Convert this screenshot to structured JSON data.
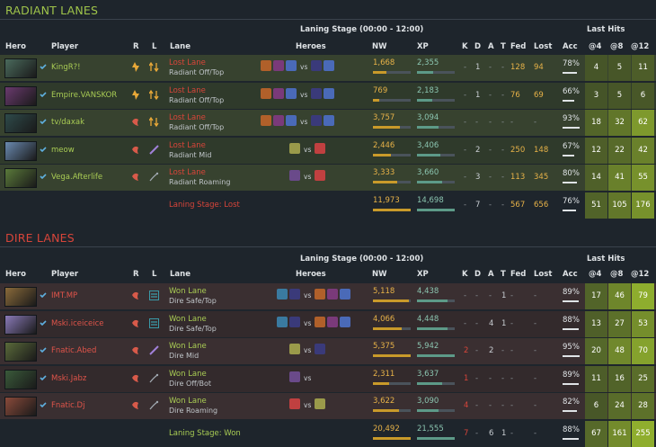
{
  "radiant": {
    "title": "RADIANT LANES",
    "stage_header": "Laning Stage (00:00 - 12:00)",
    "last_hits_header": "Last Hits",
    "columns": {
      "hero": "Hero",
      "player": "Player",
      "r": "R",
      "l": "L",
      "lane": "Lane",
      "heroes": "Heroes",
      "nw": "NW",
      "xp": "XP",
      "k": "K",
      "d": "D",
      "a": "A",
      "t": "T",
      "fed": "Fed",
      "lost": "Lost",
      "acc": "Acc",
      "lh4": "@4",
      "lh8": "@8",
      "lh12": "@12"
    },
    "rows": [
      {
        "player": "KingR?!",
        "lane_result": "Lost Lane",
        "lane_pos": "Radiant Off/Top",
        "nw": "1,668",
        "nw_frac": 0.35,
        "xp": "2,355",
        "xp_frac": 0.43,
        "k": "-",
        "d": "1",
        "a": "-",
        "t": "-",
        "fed": "128",
        "lost": "94",
        "acc": "78%",
        "acc_frac": 0.78,
        "lh4": "4",
        "lh8": "5",
        "lh12": "11",
        "vs": "vs"
      },
      {
        "player": "Empire.VANSKOR",
        "lane_result": "Lost Lane",
        "lane_pos": "Radiant Off/Top",
        "nw": "769",
        "nw_frac": 0.16,
        "xp": "2,183",
        "xp_frac": 0.4,
        "k": "-",
        "d": "1",
        "a": "-",
        "t": "-",
        "fed": "76",
        "lost": "69",
        "acc": "66%",
        "acc_frac": 0.66,
        "lh4": "3",
        "lh8": "5",
        "lh12": "6",
        "vs": "vs"
      },
      {
        "player": "tv/daxak",
        "lane_result": "Lost Lane",
        "lane_pos": "Radiant Off/Top",
        "nw": "3,757",
        "nw_frac": 0.72,
        "xp": "3,094",
        "xp_frac": 0.57,
        "k": "-",
        "d": "-",
        "a": "-",
        "t": "-",
        "fed": "-",
        "lost": "-",
        "acc": "93%",
        "acc_frac": 0.93,
        "lh4": "18",
        "lh8": "32",
        "lh12": "62",
        "vs": "vs"
      },
      {
        "player": "meow",
        "lane_result": "Lost Lane",
        "lane_pos": "Radiant Mid",
        "nw": "2,446",
        "nw_frac": 0.47,
        "xp": "3,406",
        "xp_frac": 0.62,
        "k": "-",
        "d": "2",
        "a": "-",
        "t": "-",
        "fed": "250",
        "lost": "148",
        "acc": "67%",
        "acc_frac": 0.67,
        "lh4": "12",
        "lh8": "22",
        "lh12": "42",
        "vs": "vs"
      },
      {
        "player": "Vega.Afterlife",
        "lane_result": "Lost Lane",
        "lane_pos": "Radiant Roaming",
        "nw": "3,333",
        "nw_frac": 0.64,
        "xp": "3,660",
        "xp_frac": 0.67,
        "k": "-",
        "d": "3",
        "a": "-",
        "t": "-",
        "fed": "113",
        "lost": "345",
        "acc": "80%",
        "acc_frac": 0.8,
        "lh4": "14",
        "lh8": "41",
        "lh12": "55",
        "vs": "vs"
      }
    ],
    "total": {
      "label": "Laning Stage: Lost",
      "nw": "11,973",
      "xp": "14,698",
      "k": "-",
      "d": "7",
      "a": "-",
      "t": "-",
      "fed": "567",
      "lost": "656",
      "acc": "76%",
      "acc_frac": 0.76,
      "lh4": "51",
      "lh8": "105",
      "lh12": "176"
    }
  },
  "dire": {
    "title": "DIRE LANES",
    "stage_header": "Laning Stage (00:00 - 12:00)",
    "last_hits_header": "Last Hits",
    "columns": {
      "hero": "Hero",
      "player": "Player",
      "r": "R",
      "l": "L",
      "lane": "Lane",
      "heroes": "Heroes",
      "nw": "NW",
      "xp": "XP",
      "k": "K",
      "d": "D",
      "a": "A",
      "t": "T",
      "fed": "Fed",
      "lost": "Lost",
      "acc": "Acc",
      "lh4": "@4",
      "lh8": "@8",
      "lh12": "@12"
    },
    "rows": [
      {
        "player": "IMT.MP",
        "lane_result": "Won Lane",
        "lane_pos": "Dire Safe/Top",
        "nw": "5,118",
        "nw_frac": 0.95,
        "xp": "4,438",
        "xp_frac": 0.8,
        "k": "-",
        "d": "-",
        "a": "-",
        "t": "1",
        "fed": "-",
        "lost": "-",
        "acc": "89%",
        "acc_frac": 0.89,
        "lh4": "17",
        "lh8": "46",
        "lh12": "79",
        "vs": "vs"
      },
      {
        "player": "Mski.iceiceice",
        "lane_result": "Won Lane",
        "lane_pos": "Dire Safe/Top",
        "nw": "4,066",
        "nw_frac": 0.76,
        "xp": "4,448",
        "xp_frac": 0.8,
        "k": "-",
        "d": "-",
        "a": "4",
        "t": "1",
        "fed": "-",
        "lost": "-",
        "acc": "88%",
        "acc_frac": 0.88,
        "lh4": "13",
        "lh8": "27",
        "lh12": "53",
        "vs": "vs"
      },
      {
        "player": "Fnatic.Abed",
        "lane_result": "Won Lane",
        "lane_pos": "Dire Mid",
        "nw": "5,375",
        "nw_frac": 1.0,
        "xp": "5,942",
        "xp_frac": 1.0,
        "k": "2",
        "d": "-",
        "a": "2",
        "t": "-",
        "fed": "-",
        "lost": "-",
        "acc": "95%",
        "acc_frac": 0.95,
        "lh4": "20",
        "lh8": "48",
        "lh12": "70",
        "vs": "vs"
      },
      {
        "player": "Mski.Jabz",
        "lane_result": "Won Lane",
        "lane_pos": "Dire Off/Bot",
        "nw": "2,311",
        "nw_frac": 0.43,
        "xp": "3,637",
        "xp_frac": 0.66,
        "k": "1",
        "d": "-",
        "a": "-",
        "t": "-",
        "fed": "-",
        "lost": "-",
        "acc": "89%",
        "acc_frac": 0.89,
        "lh4": "11",
        "lh8": "16",
        "lh12": "25",
        "vs": "vs"
      },
      {
        "player": "Fnatic.Dj",
        "lane_result": "Won Lane",
        "lane_pos": "Dire Roaming",
        "nw": "3,622",
        "nw_frac": 0.68,
        "xp": "3,090",
        "xp_frac": 0.56,
        "k": "4",
        "d": "-",
        "a": "-",
        "t": "-",
        "fed": "-",
        "lost": "-",
        "acc": "82%",
        "acc_frac": 0.82,
        "lh4": "6",
        "lh8": "24",
        "lh12": "28",
        "vs": "vs"
      }
    ],
    "total": {
      "label": "Laning Stage: Won",
      "nw": "20,492",
      "xp": "21,555",
      "k": "7",
      "d": "-",
      "a": "6",
      "t": "1",
      "fed": "-",
      "lost": "-",
      "acc": "88%",
      "acc_frac": 0.88,
      "lh4": "67",
      "lh8": "161",
      "lh12": "255"
    }
  },
  "colors": {
    "radiant_green": "#a9cc54",
    "dire_red": "#d8453a",
    "gold": "#e7b248",
    "xp_teal": "#8bc5b0",
    "lh_green": "#8fae2e"
  }
}
